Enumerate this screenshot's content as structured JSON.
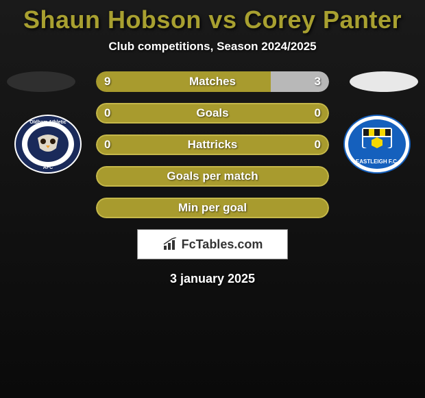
{
  "title": "Shaun Hobson vs Corey Panter",
  "subtitle": "Club competitions, Season 2024/2025",
  "date": "3 january 2025",
  "footer_logo_text": "FcTables.com",
  "colors": {
    "title": "#a8a030",
    "olive": "#a89b2e",
    "olive_border": "#c5b84a",
    "light_bar": "#b8b8b8",
    "white": "#ffffff",
    "badge_oval_left": "#2f2f2f",
    "badge_oval_right": "#e8e8e8"
  },
  "stats": [
    {
      "label": "Matches",
      "left_value": "9",
      "right_value": "3",
      "left_pct": 75,
      "right_pct": 25,
      "left_color": "#a89b2e",
      "right_color": "#b8b8b8",
      "label_color": "#ffffff",
      "value_color": "#ffffff"
    },
    {
      "label": "Goals",
      "left_value": "0",
      "right_value": "0",
      "full": true,
      "full_color": "#a89b2e",
      "border_color": "#c5b84a",
      "label_color": "#ffffff",
      "value_color": "#ffffff"
    },
    {
      "label": "Hattricks",
      "left_value": "0",
      "right_value": "0",
      "full": true,
      "full_color": "#a89b2e",
      "border_color": "#c5b84a",
      "label_color": "#ffffff",
      "value_color": "#ffffff"
    },
    {
      "label": "Goals per match",
      "left_value": "",
      "right_value": "",
      "full": true,
      "full_color": "#a89b2e",
      "border_color": "#c5b84a",
      "label_color": "#ffffff",
      "value_color": "#ffffff"
    },
    {
      "label": "Min per goal",
      "left_value": "",
      "right_value": "",
      "full": true,
      "full_color": "#a89b2e",
      "border_color": "#c5b84a",
      "label_color": "#ffffff",
      "value_color": "#ffffff"
    }
  ],
  "clubs": {
    "left": {
      "name": "Oldham Athletic",
      "badge_bg": "#1a2a5a",
      "badge_accent": "#ffffff"
    },
    "right": {
      "name": "Eastleigh FC",
      "badge_bg": "#1560bd",
      "badge_accent": "#f5d800"
    }
  }
}
